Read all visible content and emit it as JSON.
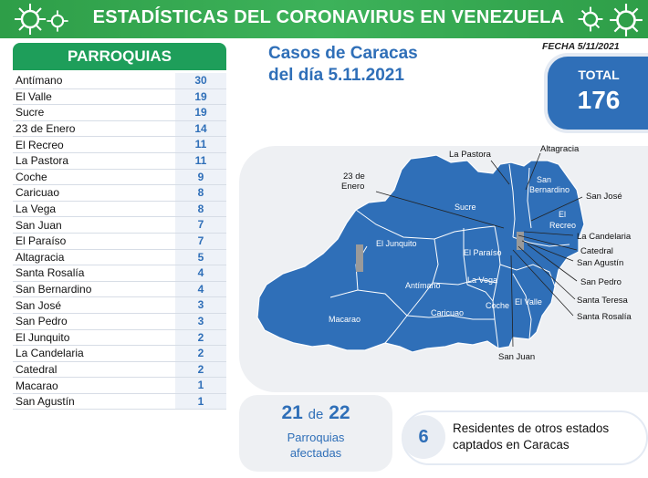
{
  "header": {
    "title": "ESTADÍSTICAS DEL CORONAVIRUS EN VENEZUELA"
  },
  "parroquias": {
    "title": "PARROQUIAS",
    "rows": [
      {
        "name": "Antímano",
        "value": "30"
      },
      {
        "name": "El Valle",
        "value": "19"
      },
      {
        "name": "Sucre",
        "value": "19"
      },
      {
        "name": "23 de Enero",
        "value": "14"
      },
      {
        "name": "El Recreo",
        "value": "11"
      },
      {
        "name": "La Pastora",
        "value": "11"
      },
      {
        "name": "Coche",
        "value": "9"
      },
      {
        "name": "Caricuao",
        "value": "8"
      },
      {
        "name": "La Vega",
        "value": "8"
      },
      {
        "name": "San Juan",
        "value": "7"
      },
      {
        "name": "El Paraíso",
        "value": "7"
      },
      {
        "name": "Altagracia",
        "value": "5"
      },
      {
        "name": "Santa Rosalía",
        "value": "4"
      },
      {
        "name": "San Bernardino",
        "value": "4"
      },
      {
        "name": "San José",
        "value": "3"
      },
      {
        "name": "San Pedro",
        "value": "3"
      },
      {
        "name": "El Junquito",
        "value": "2"
      },
      {
        "name": "La Candelaria",
        "value": "2"
      },
      {
        "name": "Catedral",
        "value": "2"
      },
      {
        "name": "Macarao",
        "value": "1"
      },
      {
        "name": "San Agustín",
        "value": "1"
      }
    ]
  },
  "casos": {
    "line1": "Casos de Caracas",
    "line2": "del día 5.11.2021"
  },
  "fecha": "FECHA 5/11/2021",
  "total": {
    "label": "TOTAL",
    "value": "176"
  },
  "map": {
    "inside_labels": {
      "sucre": "Sucre",
      "junquito": "El Junquito",
      "paraiso": "El Paraíso",
      "vega": "La Vega",
      "antimano": "Antímano",
      "macarao": "Macarao",
      "caricuao": "Caricuao",
      "coche": "Coche",
      "valle": "El Valle",
      "san": "San",
      "bernardino": "Bernardino",
      "el": "El",
      "recreo": "Recreo"
    },
    "callouts": {
      "pastora": "La Pastora",
      "altagracia": "Altagracia",
      "enero1": "23 de",
      "enero2": "Enero",
      "sanjose": "San José",
      "candelaria": "La Candelaria",
      "catedral": "Catedral",
      "sanagustin": "San Agustín",
      "sanpedro": "San Pedro",
      "santateresa": "Santa Teresa",
      "santarosalia": "Santa Rosalía",
      "sanjuan": "San Juan"
    },
    "colors": {
      "region": "#2f6fb8",
      "border": "#ffffff",
      "cutout": "#9a9a9a"
    }
  },
  "afectadas": {
    "num": "21",
    "de": "de",
    "total": "22",
    "line1": "Parroquias",
    "line2": "afectadas"
  },
  "residentes": {
    "num": "6",
    "line1": "Residentes de otros estados",
    "line2": "captados en Caracas"
  }
}
